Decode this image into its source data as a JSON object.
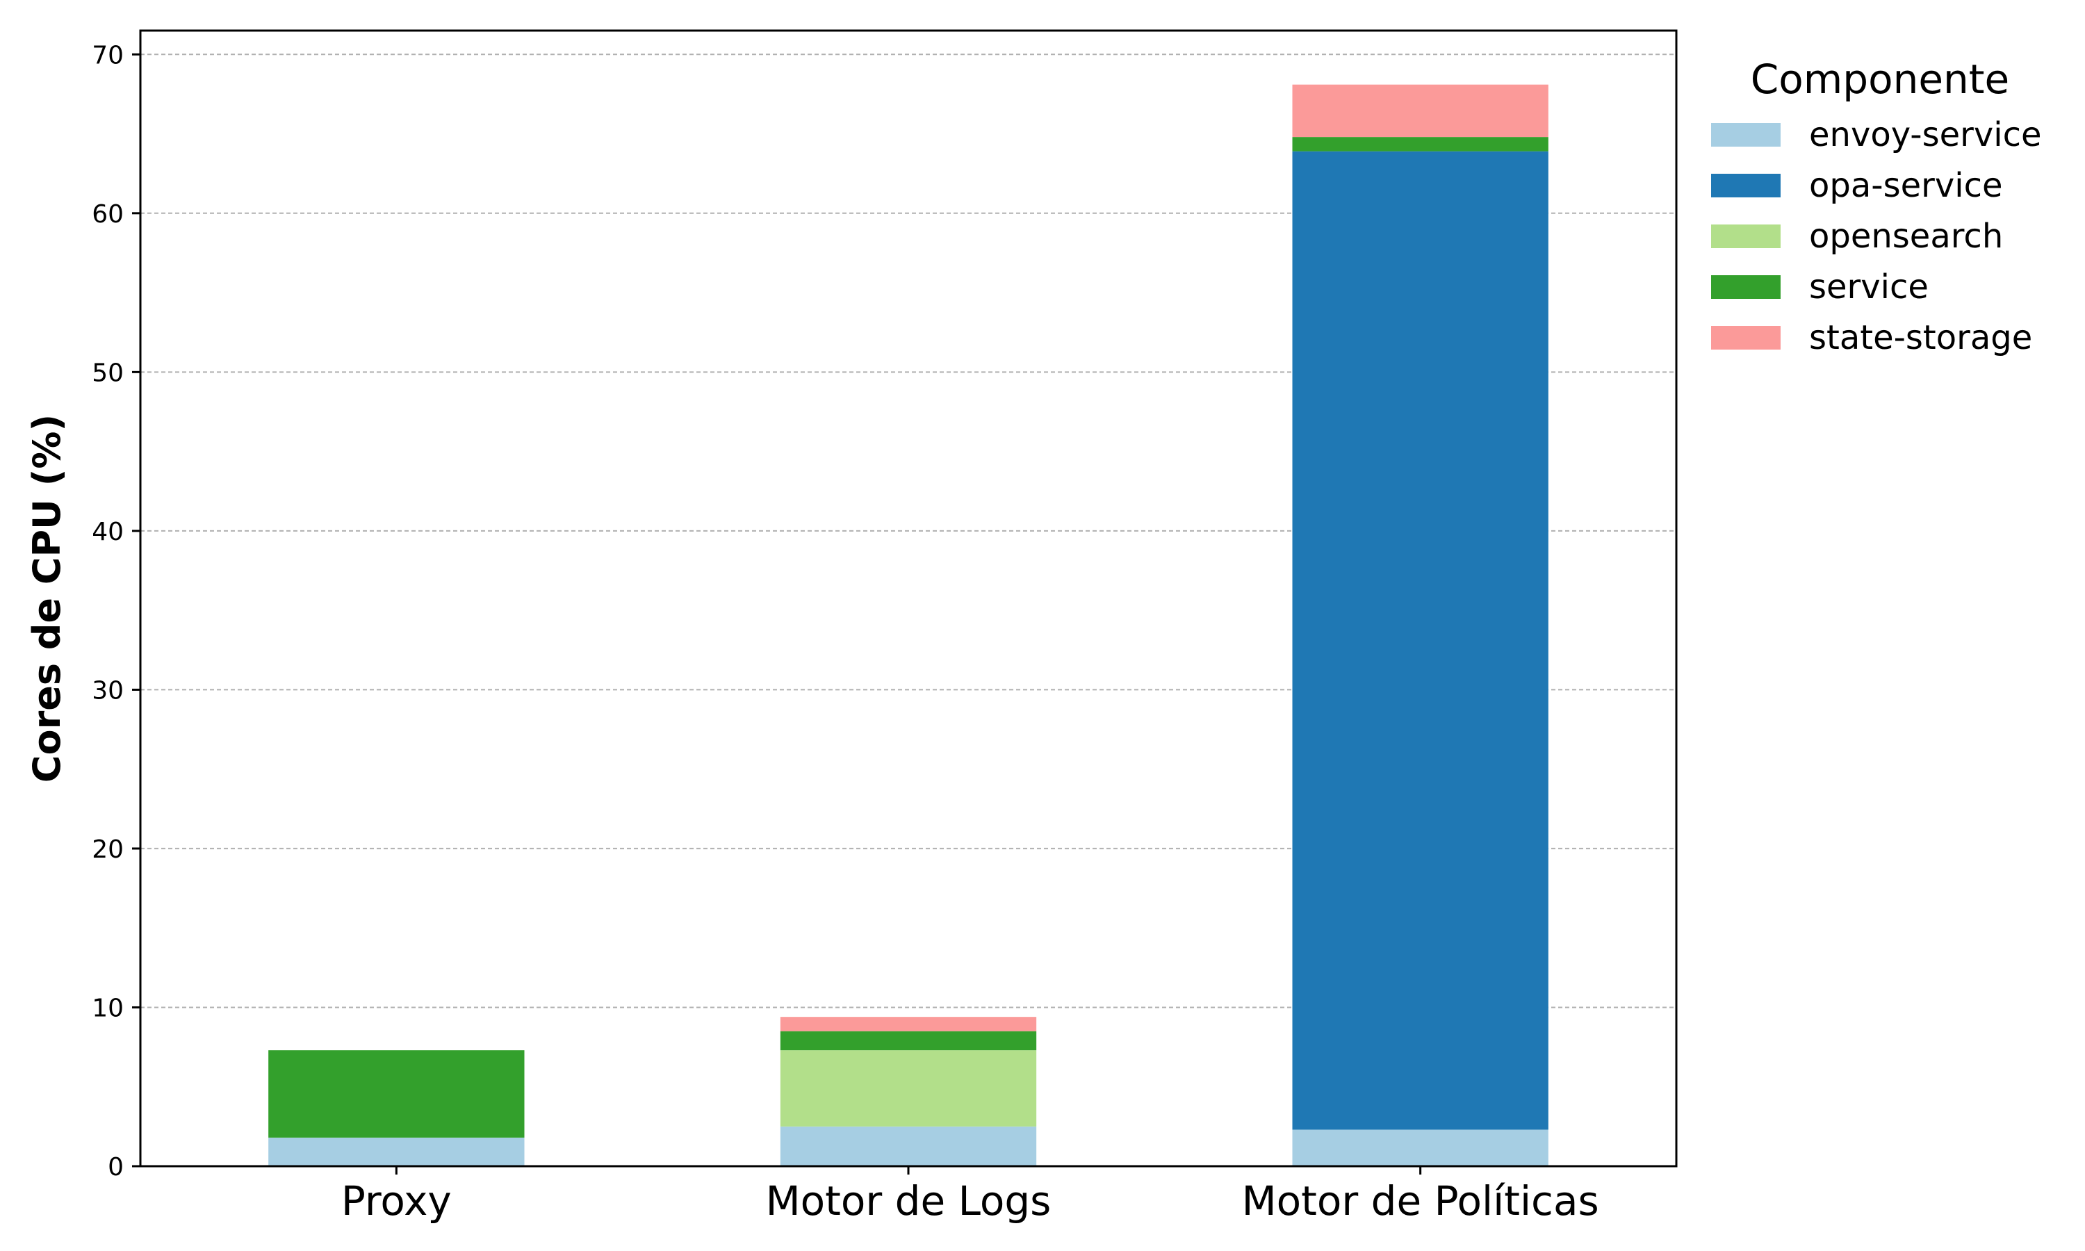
{
  "chart_data": {
    "type": "bar",
    "stacked": true,
    "title": "",
    "xlabel": "",
    "ylabel": "Cores de CPU (%)",
    "ylim": [
      0,
      71.5
    ],
    "yticks": [
      0,
      10,
      20,
      30,
      40,
      50,
      60,
      70
    ],
    "grid": "y",
    "categories": [
      "Proxy",
      "Motor de Logs",
      "Motor de Políticas"
    ],
    "series": [
      {
        "name": "envoy-service",
        "color": "#a6cee3",
        "values": [
          1.8,
          2.5,
          2.3
        ]
      },
      {
        "name": "opa-service",
        "color": "#1f78b4",
        "values": [
          0,
          0,
          61.6
        ]
      },
      {
        "name": "opensearch",
        "color": "#b2df8a",
        "values": [
          0,
          4.8,
          0
        ]
      },
      {
        "name": "service",
        "color": "#33a02c",
        "values": [
          5.5,
          1.2,
          0.9
        ]
      },
      {
        "name": "state-storage",
        "color": "#fb9a99",
        "values": [
          0,
          0.9,
          3.3
        ]
      }
    ],
    "legend": {
      "title": "Componente",
      "placement": "outside-top-right"
    }
  }
}
